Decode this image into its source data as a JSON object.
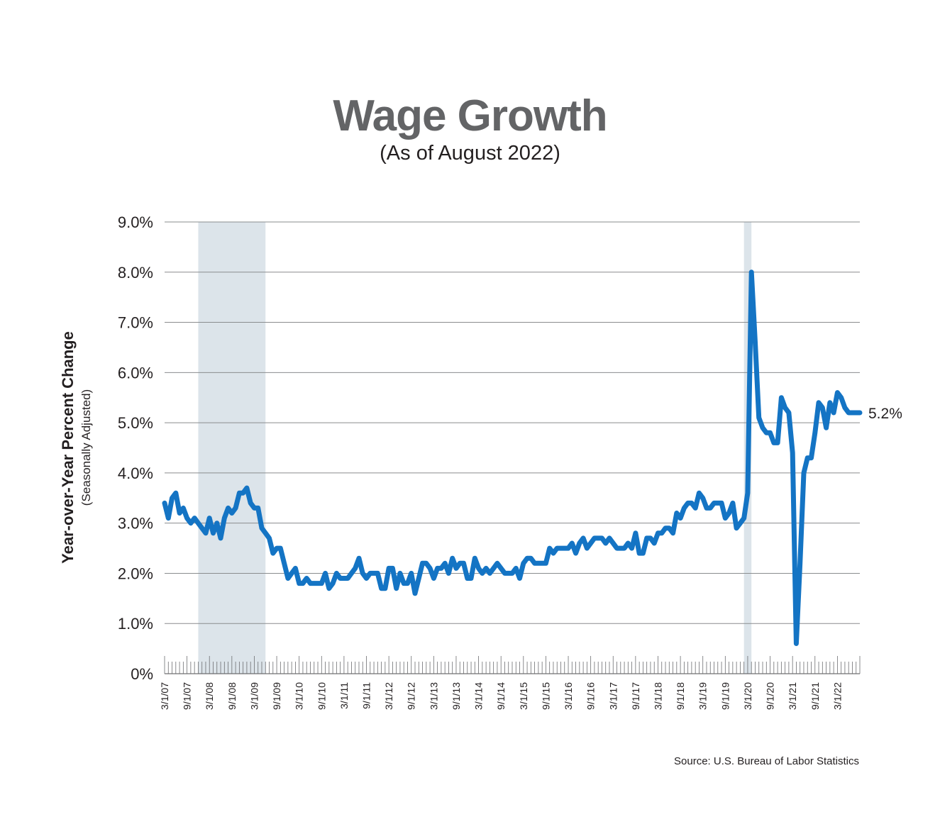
{
  "chart_data": {
    "type": "line",
    "title": "Wage Growth",
    "subtitle": "(As of August 2022)",
    "ylabel": "Year-over-Year Percent Change",
    "ylabel_sub": "(Seasonally Adjusted)",
    "xlabel": "",
    "source": "Source: U.S. Bureau of Labor Statistics",
    "ylim": [
      0,
      9
    ],
    "yticks": [
      0,
      1,
      2,
      3,
      4,
      5,
      6,
      7,
      8,
      9
    ],
    "ytick_labels": [
      "0%",
      "1.0%",
      "2.0%",
      "3.0%",
      "4.0%",
      "5.0%",
      "6.0%",
      "7.0%",
      "8.0%",
      "9.0%"
    ],
    "x_start": "2007-03",
    "x_end": "2022-08",
    "xtick_labels": [
      "3/1/07",
      "9/1/07",
      "3/1/08",
      "9/1/08",
      "3/1/09",
      "9/1/09",
      "3/1/10",
      "9/1/10",
      "3/1/11",
      "9/1/11",
      "3/1/12",
      "9/1/12",
      "3/1/13",
      "9/1/13",
      "3/1/14",
      "9/1/14",
      "3/1/15",
      "9/1/15",
      "3/1/16",
      "9/1/16",
      "3/1/17",
      "9/1/17",
      "3/1/18",
      "9/1/18",
      "3/1/19",
      "9/1/19",
      "3/1/20",
      "9/1/20",
      "3/1/21",
      "9/1/21",
      "3/1/22"
    ],
    "shaded_periods": [
      {
        "start": "2007-12",
        "end": "2009-06"
      },
      {
        "start": "2020-02",
        "end": "2020-04"
      }
    ],
    "grid": true,
    "line_color": "#1474c4",
    "shade_color": "#dce4ea",
    "end_label": "5.2%",
    "series": [
      {
        "values": [
          3.4,
          3.1,
          3.5,
          3.6,
          3.2,
          3.3,
          3.1,
          3.0,
          3.1,
          3.0,
          2.9,
          2.8,
          3.1,
          2.8,
          3.0,
          2.7,
          3.1,
          3.3,
          3.2,
          3.3,
          3.6,
          3.6,
          3.7,
          3.4,
          3.3,
          3.3,
          2.9,
          2.8,
          2.7,
          2.4,
          2.5,
          2.5,
          2.2,
          1.9,
          2.0,
          2.1,
          1.8,
          1.8,
          1.9,
          1.8,
          1.8,
          1.8,
          1.8,
          2.0,
          1.7,
          1.8,
          2.0,
          1.9,
          1.9,
          1.9,
          2.0,
          2.1,
          2.3,
          2.0,
          1.9,
          2.0,
          2.0,
          2.0,
          1.7,
          1.7,
          2.1,
          2.1,
          1.7,
          2.0,
          1.8,
          1.8,
          2.0,
          1.6,
          1.9,
          2.2,
          2.2,
          2.1,
          1.9,
          2.1,
          2.1,
          2.2,
          2.0,
          2.3,
          2.1,
          2.2,
          2.2,
          1.9,
          1.9,
          2.3,
          2.1,
          2.0,
          2.1,
          2.0,
          2.1,
          2.2,
          2.1,
          2.0,
          2.0,
          2.0,
          2.1,
          1.9,
          2.2,
          2.3,
          2.3,
          2.2,
          2.2,
          2.2,
          2.2,
          2.5,
          2.4,
          2.5,
          2.5,
          2.5,
          2.5,
          2.6,
          2.4,
          2.6,
          2.7,
          2.5,
          2.6,
          2.7,
          2.7,
          2.7,
          2.6,
          2.7,
          2.6,
          2.5,
          2.5,
          2.5,
          2.6,
          2.5,
          2.8,
          2.4,
          2.4,
          2.7,
          2.7,
          2.6,
          2.8,
          2.8,
          2.9,
          2.9,
          2.8,
          3.2,
          3.1,
          3.3,
          3.4,
          3.4,
          3.3,
          3.6,
          3.5,
          3.3,
          3.3,
          3.4,
          3.4,
          3.4,
          3.1,
          3.2,
          3.4,
          2.9,
          3.0,
          3.1,
          3.6,
          8.0,
          6.6,
          5.1,
          4.9,
          4.8,
          4.8,
          4.6,
          4.6,
          5.5,
          5.3,
          5.2,
          4.4,
          0.6,
          2.2,
          4.0,
          4.3,
          4.3,
          4.8,
          5.4,
          5.3,
          4.9,
          5.4,
          5.2,
          5.6,
          5.5,
          5.3,
          5.2,
          5.2,
          5.2,
          5.2
        ]
      }
    ]
  }
}
